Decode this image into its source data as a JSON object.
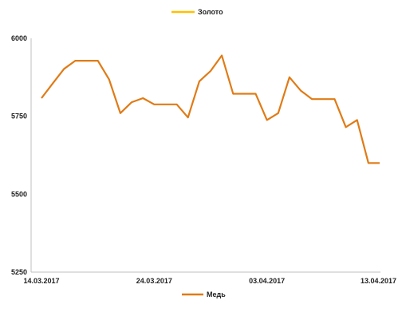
{
  "chart_data": {
    "type": "line",
    "x": [
      "14.03.2017",
      "15.03.2017",
      "16.03.2017",
      "17.03.2017",
      "18.03.2017",
      "19.03.2017",
      "20.03.2017",
      "21.03.2017",
      "22.03.2017",
      "23.03.2017",
      "24.03.2017",
      "25.03.2017",
      "26.03.2017",
      "27.03.2017",
      "28.03.2017",
      "29.03.2017",
      "30.03.2017",
      "31.03.2017",
      "01.04.2017",
      "02.04.2017",
      "03.04.2017",
      "04.04.2017",
      "05.04.2017",
      "06.04.2017",
      "07.04.2017",
      "08.04.2017",
      "09.04.2017",
      "10.04.2017",
      "11.04.2017",
      "12.04.2017",
      "13.04.2017"
    ],
    "x_tick_labels": [
      "14.03.2017",
      "24.03.2017",
      "03.04.2017",
      "13.04.2017"
    ],
    "ylim": [
      5250,
      6000
    ],
    "y_ticks": [
      5250,
      5500,
      5750,
      6000
    ],
    "grid": false,
    "legend_top": "Золото",
    "legend_bottom": "Медь",
    "series": [
      {
        "name": "Медь",
        "color": "#E07B16",
        "values": [
          5808,
          5855,
          5902,
          5928,
          5928,
          5928,
          5868,
          5760,
          5795,
          5808,
          5788,
          5788,
          5788,
          5746,
          5862,
          5895,
          5945,
          5822,
          5822,
          5822,
          5738,
          5760,
          5875,
          5832,
          5805,
          5805,
          5805,
          5715,
          5738,
          5600,
          5600
        ]
      }
    ],
    "top_legend_color": "#FFC000"
  }
}
